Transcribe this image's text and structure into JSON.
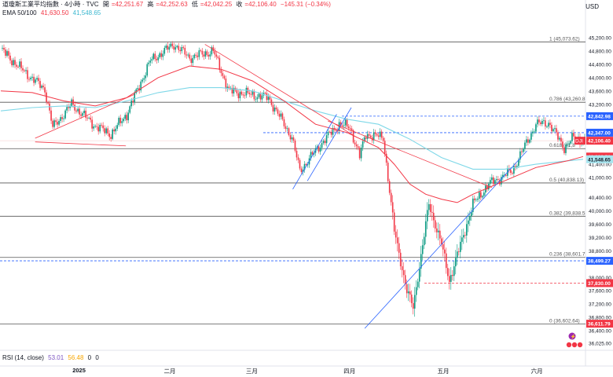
{
  "header": {
    "title": "道瓊斯工業平均指數 · 4小時 · TVC",
    "open_label": "開",
    "open": "=42,251.67",
    "high_label": "高",
    "high": "=42,252.63",
    "low_label": "低",
    "low": "=42,042.25",
    "close_label": "收",
    "close": "=42,106.40",
    "change": "−145.31 (−0.34%)",
    "ema_label": "EMA 50/100",
    "ema50": "41,630.50",
    "ema100": "41,548.65"
  },
  "currency": "USD",
  "rsi": {
    "label": "RSI (14, close)",
    "value1": "53.01",
    "value2": "56.48",
    "value3": "0",
    "value4": "0"
  },
  "colors": {
    "up": "#089981",
    "down": "#f23645",
    "ema50": "#f23645",
    "ema100": "#7fd8e8",
    "trend_red": "#f23645",
    "trend_blue": "#2962ff",
    "fib": "#555555",
    "level_blue": "#2962ff",
    "level_red": "#f23645"
  },
  "chart_data": {
    "type": "candlestick",
    "ylim": [
      36025,
      45600
    ],
    "y_ticks": [
      {
        "v": 45200,
        "label": "45,200.00"
      },
      {
        "v": 44800,
        "label": "44,800.00"
      },
      {
        "v": 44400,
        "label": "44,400.00"
      },
      {
        "v": 44000,
        "label": "44,000.00"
      },
      {
        "v": 43600,
        "label": "43,600.00"
      },
      {
        "v": 43200,
        "label": "43,200.00"
      },
      {
        "v": 41400,
        "label": "41,400.00"
      },
      {
        "v": 41000,
        "label": "41,000.00"
      },
      {
        "v": 40400,
        "label": "40,400.00"
      },
      {
        "v": 40000,
        "label": "40,000.00"
      },
      {
        "v": 39600,
        "label": "39,600.00"
      },
      {
        "v": 39200,
        "label": "39,200.00"
      },
      {
        "v": 38800,
        "label": "38,800.00"
      },
      {
        "v": 38000,
        "label": "38,000.00"
      },
      {
        "v": 37600,
        "label": "37,600.00"
      },
      {
        "v": 37200,
        "label": "37,200.00"
      },
      {
        "v": 36800,
        "label": "36,800.00"
      },
      {
        "v": 36400,
        "label": "36,400.00"
      },
      {
        "v": 36025,
        "label": "36,025.00"
      }
    ],
    "x_labels": [
      {
        "label": "2025",
        "x": 0.135,
        "bold": true
      },
      {
        "label": "二月",
        "x": 0.29
      },
      {
        "label": "三月",
        "x": 0.43
      },
      {
        "label": "四月",
        "x": 0.597
      },
      {
        "label": "五月",
        "x": 0.757
      },
      {
        "label": "六月",
        "x": 0.917
      }
    ],
    "fib_levels": [
      {
        "v": 45073.62,
        "label": "1 (45,073.62)"
      },
      {
        "v": 43260.8,
        "label": "0.786 (43,260.8"
      },
      {
        "v": 41868,
        "label": "0.618 (41,8"
      },
      {
        "v": 40838.13,
        "label": "0.5 (40,838.13)"
      },
      {
        "v": 39838.5,
        "label": "0.382 (39,838.5"
      },
      {
        "v": 38601.7,
        "label": "0.236 (38,601.7"
      },
      {
        "v": 36602.64,
        "label": "0 (36,602.64)"
      }
    ],
    "price_tags": [
      {
        "v": 42842.98,
        "label": "42,842.98",
        "style": "blue",
        "dashed": true
      },
      {
        "v": 42347.0,
        "label": "42,347.00",
        "style": "blue",
        "dashed": true
      },
      {
        "v": 42106.4,
        "label": "42,106.40",
        "style": "red",
        "prefix": "DJI"
      },
      {
        "v": 41630.5,
        "label": "41,630.50",
        "style": "red"
      },
      {
        "v": 41548.65,
        "label": "41,548.65",
        "style": "cyan"
      },
      {
        "v": 38499.27,
        "label": "38,499.27",
        "style": "blue",
        "dashed": true
      },
      {
        "v": 37830.0,
        "label": "37,830.00",
        "style": "red",
        "dashed": true
      },
      {
        "v": 36611.79,
        "label": "36,611.79",
        "style": "red"
      }
    ],
    "waypoints": [
      [
        0,
        44850
      ],
      [
        12,
        44300
      ],
      [
        28,
        43650
      ],
      [
        33,
        42500
      ],
      [
        45,
        43200
      ],
      [
        60,
        42550
      ],
      [
        70,
        42300
      ],
      [
        80,
        42900
      ],
      [
        95,
        44500
      ],
      [
        110,
        45000
      ],
      [
        120,
        44600
      ],
      [
        135,
        44800
      ],
      [
        145,
        43600
      ],
      [
        170,
        43400
      ],
      [
        185,
        42200
      ],
      [
        190,
        41200
      ],
      [
        205,
        42100
      ],
      [
        215,
        42600
      ],
      [
        222,
        42500
      ],
      [
        228,
        41650
      ],
      [
        232,
        42300
      ],
      [
        243,
        42200
      ],
      [
        250,
        39400
      ],
      [
        258,
        37600
      ],
      [
        262,
        37100
      ],
      [
        272,
        40200
      ],
      [
        280,
        39000
      ],
      [
        285,
        37900
      ],
      [
        300,
        40200
      ],
      [
        310,
        40800
      ],
      [
        325,
        41200
      ],
      [
        340,
        42600
      ],
      [
        348,
        42650
      ],
      [
        358,
        41900
      ],
      [
        364,
        42200
      ],
      [
        370,
        42106
      ]
    ],
    "ema50_points": [
      [
        0,
        43600
      ],
      [
        20,
        43550
      ],
      [
        40,
        43300
      ],
      [
        60,
        43150
      ],
      [
        80,
        43400
      ],
      [
        100,
        44000
      ],
      [
        120,
        44350
      ],
      [
        140,
        44250
      ],
      [
        160,
        43900
      ],
      [
        180,
        43300
      ],
      [
        200,
        42600
      ],
      [
        220,
        42350
      ],
      [
        240,
        41900
      ],
      [
        250,
        41400
      ],
      [
        260,
        40800
      ],
      [
        270,
        40500
      ],
      [
        280,
        40350
      ],
      [
        290,
        40250
      ],
      [
        300,
        40500
      ],
      [
        320,
        40900
      ],
      [
        340,
        41300
      ],
      [
        360,
        41500
      ],
      [
        370,
        41630
      ]
    ],
    "ema100_points": [
      [
        0,
        43000
      ],
      [
        20,
        43100
      ],
      [
        40,
        43150
      ],
      [
        60,
        43100
      ],
      [
        80,
        43300
      ],
      [
        100,
        43550
      ],
      [
        120,
        43700
      ],
      [
        140,
        43700
      ],
      [
        160,
        43600
      ],
      [
        180,
        43300
      ],
      [
        200,
        43000
      ],
      [
        220,
        42750
      ],
      [
        240,
        42600
      ],
      [
        260,
        42150
      ],
      [
        280,
        41600
      ],
      [
        300,
        41250
      ],
      [
        320,
        41250
      ],
      [
        340,
        41400
      ],
      [
        360,
        41500
      ],
      [
        370,
        41548
      ]
    ],
    "trendlines_red": [
      [
        [
          0.06,
          42070
        ],
        [
          0.215,
          41950
        ]
      ],
      [
        [
          0.06,
          42180
        ],
        [
          0.23,
          43500
        ]
      ],
      [
        [
          0.35,
          45000
        ],
        [
          0.61,
          42200
        ]
      ],
      [
        [
          0.56,
          42700
        ],
        [
          0.84,
          40700
        ]
      ]
    ],
    "trendlines_blue": [
      [
        [
          0.5,
          40650
        ],
        [
          0.575,
          42900
        ]
      ],
      [
        [
          0.525,
          40900
        ],
        [
          0.6,
          43100
        ]
      ],
      [
        [
          0.623,
          36470
        ],
        [
          0.9,
          41800
        ]
      ]
    ]
  }
}
